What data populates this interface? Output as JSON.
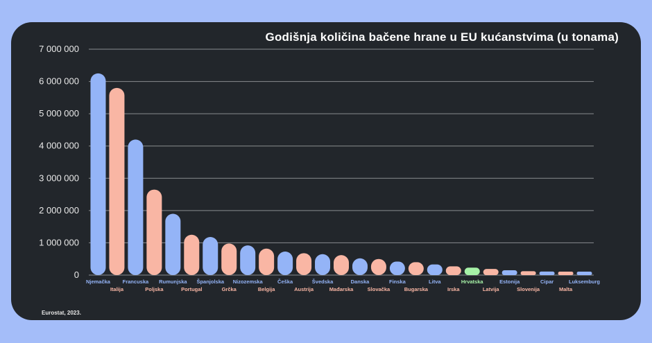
{
  "chart_data": {
    "type": "bar",
    "title": "Godišnja količina bačene hrane u EU kućanstvima (u tonama)",
    "source": "Eurostat, 2023.",
    "ylim": [
      0,
      7000000
    ],
    "yticks": [
      "7 000 000",
      "6 000 000",
      "5 000 000",
      "4 000 000",
      "3 000 000",
      "2 000 000",
      "1 000 000",
      "0"
    ],
    "ytick_values": [
      7000000,
      6000000,
      5000000,
      4000000,
      3000000,
      2000000,
      1000000,
      0
    ],
    "grid": true,
    "categories": [
      "Njemačka",
      "Italija",
      "Francuska",
      "Poljska",
      "Rumunjska",
      "Portugal",
      "Španjolska",
      "Grčka",
      "Nizozemska",
      "Belgija",
      "Češka",
      "Austrija",
      "Švedska",
      "Mađarska",
      "Danska",
      "Slovačka",
      "Finska",
      "Bugarska",
      "Litva",
      "Irska",
      "Hrvatska",
      "Latvija",
      "Estonija",
      "Slovenija",
      "Cipar",
      "Malta",
      "Luksemburg"
    ],
    "values": [
      6250000,
      5800000,
      4200000,
      2650000,
      1900000,
      1250000,
      1180000,
      980000,
      920000,
      820000,
      730000,
      680000,
      650000,
      620000,
      520000,
      500000,
      420000,
      400000,
      330000,
      270000,
      230000,
      190000,
      150000,
      120000,
      110000,
      90000,
      70000
    ],
    "colors": {
      "blue": "#94b4f7",
      "salmon": "#f9b6a4",
      "green": "#a6f2a7",
      "grid": "#8a8d90",
      "card": "#22262b",
      "background": "#a4bdf9"
    },
    "bar_colors": [
      "blue",
      "salmon",
      "blue",
      "salmon",
      "blue",
      "salmon",
      "blue",
      "salmon",
      "blue",
      "salmon",
      "blue",
      "salmon",
      "blue",
      "salmon",
      "blue",
      "salmon",
      "blue",
      "salmon",
      "blue",
      "salmon",
      "green",
      "salmon",
      "blue",
      "salmon",
      "blue",
      "salmon",
      "blue"
    ]
  }
}
